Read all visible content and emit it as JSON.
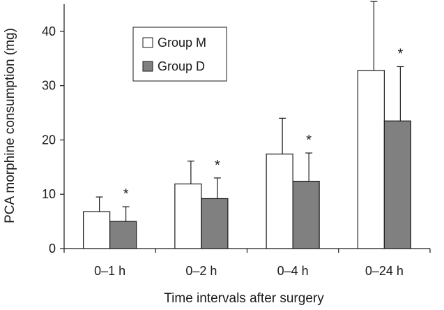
{
  "chart_data": {
    "type": "bar",
    "categories": [
      "0–1 h",
      "0–2 h",
      "0–4 h",
      "0–24 h"
    ],
    "series": [
      {
        "name": "Group M",
        "values": [
          6.8,
          11.9,
          17.4,
          32.8
        ],
        "error_upper": [
          9.5,
          16.1,
          24.0,
          45.5
        ],
        "color": "#ffffff"
      },
      {
        "name": "Group D",
        "values": [
          5.0,
          9.2,
          12.4,
          23.5
        ],
        "error_upper": [
          7.7,
          13.0,
          17.6,
          33.5
        ],
        "color": "#808080"
      }
    ],
    "significance_marks": [
      "*",
      "*",
      "*",
      "*"
    ],
    "xlabel": "Time intervals after surgery",
    "ylabel": "PCA morphine consumption (mg)",
    "ylim": [
      0,
      45
    ],
    "yticks": [
      "0",
      "10",
      "20",
      "30",
      "40"
    ],
    "grid": false,
    "legend_position": "top-left"
  }
}
